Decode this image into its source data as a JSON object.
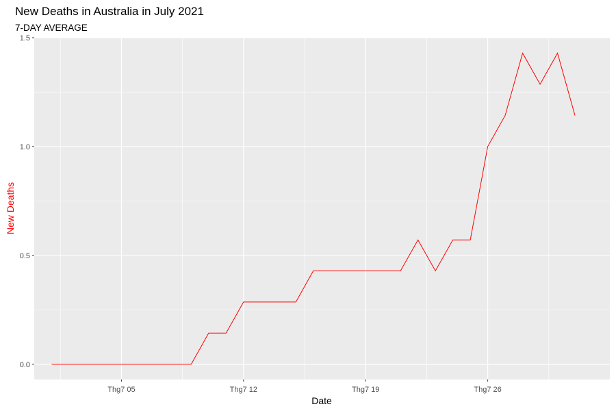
{
  "chart_data": {
    "type": "line",
    "title": "New Deaths in Australia in July 2021",
    "subtitle": "7-DAY AVERAGE",
    "xlabel": "Date",
    "ylabel": "New Deaths",
    "x_tick_labels": [
      "Thg7 05",
      "Thg7 12",
      "Thg7 19",
      "Thg7 26"
    ],
    "x_tick_dates": [
      "2021-07-05",
      "2021-07-12",
      "2021-07-19",
      "2021-07-26"
    ],
    "y_ticks": [
      0.0,
      0.5,
      1.0,
      1.5
    ],
    "y_tick_labels": [
      "0.0",
      "0.5",
      "1.0",
      "1.5"
    ],
    "xlim": [
      "2021-06-30",
      "2021-08-02"
    ],
    "ylim": [
      -0.07,
      1.5
    ],
    "grid": true,
    "series": [
      {
        "color": "#ff0000",
        "x": [
          "2021-07-01",
          "2021-07-02",
          "2021-07-03",
          "2021-07-04",
          "2021-07-05",
          "2021-07-06",
          "2021-07-07",
          "2021-07-08",
          "2021-07-09",
          "2021-07-10",
          "2021-07-11",
          "2021-07-12",
          "2021-07-13",
          "2021-07-14",
          "2021-07-15",
          "2021-07-16",
          "2021-07-17",
          "2021-07-18",
          "2021-07-19",
          "2021-07-20",
          "2021-07-21",
          "2021-07-22",
          "2021-07-23",
          "2021-07-24",
          "2021-07-25",
          "2021-07-26",
          "2021-07-27",
          "2021-07-28",
          "2021-07-29",
          "2021-07-30",
          "2021-07-31"
        ],
        "values": [
          0,
          0,
          0,
          0,
          0,
          0,
          0,
          0,
          0,
          0.143,
          0.143,
          0.286,
          0.286,
          0.286,
          0.286,
          0.429,
          0.429,
          0.429,
          0.429,
          0.429,
          0.429,
          0.571,
          0.429,
          0.571,
          0.571,
          1.0,
          1.143,
          1.429,
          1.286,
          1.429,
          1.143
        ]
      }
    ]
  },
  "colors": {
    "panel_background": "#ebebeb",
    "grid_major": "#ffffff",
    "line": "#ff0000",
    "ylabel": "#ff0000",
    "xlabel": "#000000"
  }
}
